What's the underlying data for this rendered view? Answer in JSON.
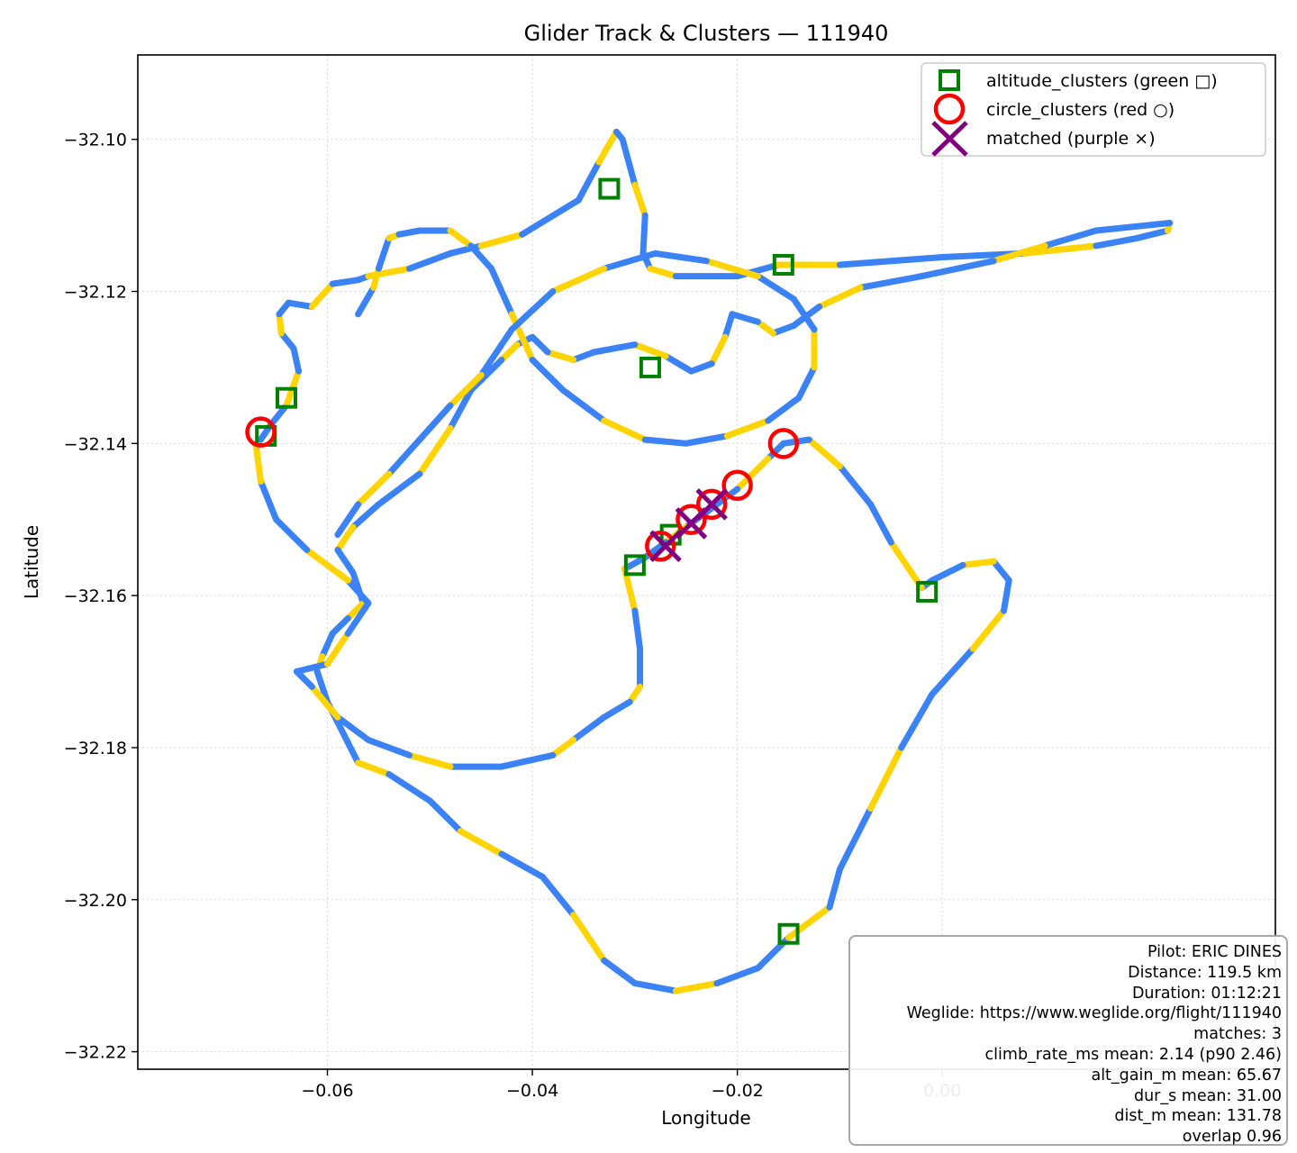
{
  "chart_data": {
    "type": "scatter",
    "title": "Glider Track & Clusters — 111940",
    "xlabel": "Longitude",
    "ylabel": "Latitude",
    "xlim": [
      -0.0785,
      0.0325
    ],
    "ylim": [
      -32.2223,
      -32.0889
    ],
    "xticks": [
      -0.06,
      -0.04,
      -0.02,
      0.0
    ],
    "xtick_labels": [
      "−0.06",
      "−0.04",
      "−0.02",
      "0.00"
    ],
    "yticks": [
      -32.1,
      -32.12,
      -32.14,
      -32.16,
      -32.18,
      -32.2,
      -32.22
    ],
    "ytick_labels": [
      "−32.10",
      "−32.12",
      "−32.14",
      "−32.16",
      "−32.18",
      "−32.20",
      "−32.22"
    ],
    "grid": true,
    "legend_position": "top-right",
    "track_colors": [
      "#3b82f6",
      "#ffd400"
    ],
    "track": [
      [
        -0.0665,
        -32.1395
      ],
      [
        -0.0655,
        -32.1375
      ],
      [
        -0.064,
        -32.135
      ],
      [
        -0.0628,
        -32.1305
      ],
      [
        -0.0633,
        -32.1275
      ],
      [
        -0.0645,
        -32.1255
      ],
      [
        -0.0647,
        -32.123
      ],
      [
        -0.0638,
        -32.1215
      ],
      [
        -0.0615,
        -32.122
      ],
      [
        -0.0595,
        -32.119
      ],
      [
        -0.057,
        -32.1185
      ],
      [
        -0.056,
        -32.118
      ],
      [
        -0.052,
        -32.117
      ],
      [
        -0.048,
        -32.115
      ],
      [
        -0.045,
        -32.114
      ],
      [
        -0.041,
        -32.1125
      ],
      [
        -0.0355,
        -32.108
      ],
      [
        -0.0335,
        -32.103
      ],
      [
        -0.0318,
        -32.099
      ],
      [
        -0.0312,
        -32.1
      ],
      [
        -0.03,
        -32.106
      ],
      [
        -0.029,
        -32.11
      ],
      [
        -0.0292,
        -32.115
      ],
      [
        -0.0285,
        -32.117
      ],
      [
        -0.026,
        -32.118
      ],
      [
        -0.02,
        -32.118
      ],
      [
        -0.016,
        -32.1165
      ],
      [
        -0.01,
        -32.1165
      ],
      [
        0.0,
        -32.1155
      ],
      [
        0.008,
        -32.115
      ],
      [
        0.015,
        -32.114
      ],
      [
        0.019,
        -32.113
      ],
      [
        0.022,
        -32.112
      ],
      [
        0.0222,
        -32.111
      ],
      [
        0.015,
        -32.112
      ],
      [
        0.01,
        -32.114
      ],
      [
        0.005,
        -32.116
      ],
      [
        -0.002,
        -32.118
      ],
      [
        -0.008,
        -32.1195
      ],
      [
        -0.012,
        -32.122
      ],
      [
        -0.0145,
        -32.1245
      ],
      [
        -0.0165,
        -32.1255
      ],
      [
        -0.018,
        -32.124
      ],
      [
        -0.0205,
        -32.123
      ],
      [
        -0.0212,
        -32.126
      ],
      [
        -0.0225,
        -32.1295
      ],
      [
        -0.0245,
        -32.1305
      ],
      [
        -0.027,
        -32.1285
      ],
      [
        -0.03,
        -32.127
      ],
      [
        -0.034,
        -32.128
      ],
      [
        -0.036,
        -32.129
      ],
      [
        -0.0385,
        -32.128
      ],
      [
        -0.04,
        -32.126
      ],
      [
        -0.0415,
        -32.127
      ],
      [
        -0.043,
        -32.129
      ],
      [
        -0.046,
        -32.133
      ],
      [
        -0.048,
        -32.138
      ],
      [
        -0.051,
        -32.144
      ],
      [
        -0.055,
        -32.148
      ],
      [
        -0.0575,
        -32.151
      ],
      [
        -0.059,
        -32.154
      ],
      [
        -0.0575,
        -32.157
      ],
      [
        -0.0565,
        -32.161
      ],
      [
        -0.058,
        -32.163
      ],
      [
        -0.0595,
        -32.165
      ],
      [
        -0.0605,
        -32.168
      ],
      [
        -0.061,
        -32.17
      ],
      [
        -0.06,
        -32.174
      ],
      [
        -0.057,
        -32.182
      ],
      [
        -0.054,
        -32.1835
      ],
      [
        -0.05,
        -32.187
      ],
      [
        -0.047,
        -32.191
      ],
      [
        -0.043,
        -32.194
      ],
      [
        -0.039,
        -32.197
      ],
      [
        -0.036,
        -32.202
      ],
      [
        -0.033,
        -32.208
      ],
      [
        -0.03,
        -32.211
      ],
      [
        -0.026,
        -32.212
      ],
      [
        -0.022,
        -32.211
      ],
      [
        -0.018,
        -32.209
      ],
      [
        -0.015,
        -32.205
      ],
      [
        -0.011,
        -32.201
      ],
      [
        -0.01,
        -32.196
      ],
      [
        -0.007,
        -32.188
      ],
      [
        -0.004,
        -32.18
      ],
      [
        -0.001,
        -32.173
      ],
      [
        0.003,
        -32.167
      ],
      [
        0.006,
        -32.162
      ],
      [
        0.0065,
        -32.158
      ],
      [
        0.005,
        -32.1555
      ],
      [
        0.002,
        -32.156
      ],
      [
        -0.001,
        -32.158
      ],
      [
        -0.002,
        -32.159
      ],
      [
        -0.005,
        -32.153
      ],
      [
        -0.007,
        -32.148
      ],
      [
        -0.01,
        -32.143
      ],
      [
        -0.013,
        -32.1395
      ],
      [
        -0.0155,
        -32.14
      ],
      [
        -0.017,
        -32.142
      ],
      [
        -0.02,
        -32.146
      ],
      [
        -0.023,
        -32.149
      ],
      [
        -0.025,
        -32.151
      ],
      [
        -0.027,
        -32.153
      ],
      [
        -0.029,
        -32.155
      ],
      [
        -0.031,
        -32.1565
      ],
      [
        -0.03,
        -32.162
      ],
      [
        -0.0295,
        -32.167
      ],
      [
        -0.0295,
        -32.172
      ],
      [
        -0.0305,
        -32.174
      ],
      [
        -0.033,
        -32.176
      ],
      [
        -0.036,
        -32.179
      ],
      [
        -0.038,
        -32.181
      ],
      [
        -0.043,
        -32.1825
      ],
      [
        -0.048,
        -32.1825
      ],
      [
        -0.052,
        -32.181
      ],
      [
        -0.056,
        -32.179
      ],
      [
        -0.059,
        -32.176
      ],
      [
        -0.0615,
        -32.172
      ],
      [
        -0.063,
        -32.17
      ],
      [
        -0.06,
        -32.169
      ],
      [
        -0.058,
        -32.165
      ],
      [
        -0.056,
        -32.161
      ],
      [
        -0.058,
        -32.158
      ],
      [
        -0.062,
        -32.154
      ],
      [
        -0.065,
        -32.15
      ],
      [
        -0.0665,
        -32.145
      ],
      [
        -0.067,
        -32.14
      ]
    ],
    "track_extra": [
      [
        -0.057,
        -32.123
      ],
      [
        -0.0555,
        -32.1195
      ],
      [
        -0.055,
        -32.117
      ],
      [
        -0.0545,
        -32.115
      ],
      [
        -0.054,
        -32.113
      ],
      [
        -0.053,
        -32.1125
      ],
      [
        -0.051,
        -32.112
      ],
      [
        -0.048,
        -32.112
      ],
      [
        -0.046,
        -32.114
      ],
      [
        -0.044,
        -32.117
      ],
      [
        -0.042,
        -32.123
      ],
      [
        -0.04,
        -32.129
      ],
      [
        -0.037,
        -32.133
      ],
      [
        -0.033,
        -32.137
      ],
      [
        -0.029,
        -32.1395
      ],
      [
        -0.025,
        -32.14
      ],
      [
        -0.021,
        -32.139
      ],
      [
        -0.017,
        -32.137
      ],
      [
        -0.014,
        -32.134
      ],
      [
        -0.0125,
        -32.13
      ],
      [
        -0.0125,
        -32.125
      ],
      [
        -0.0145,
        -32.121
      ],
      [
        -0.018,
        -32.118
      ],
      [
        -0.023,
        -32.116
      ],
      [
        -0.028,
        -32.115
      ],
      [
        -0.033,
        -32.117
      ],
      [
        -0.038,
        -32.12
      ],
      [
        -0.042,
        -32.125
      ],
      [
        -0.045,
        -32.131
      ],
      [
        -0.048,
        -32.135
      ],
      [
        -0.051,
        -32.1395
      ],
      [
        -0.054,
        -32.144
      ],
      [
        -0.057,
        -32.148
      ],
      [
        -0.059,
        -32.152
      ]
    ],
    "altitude_clusters": [
      [
        -0.0325,
        -32.1065
      ],
      [
        -0.0155,
        -32.1165
      ],
      [
        -0.0285,
        -32.13
      ],
      [
        -0.064,
        -32.134
      ],
      [
        -0.066,
        -32.139
      ],
      [
        -0.0265,
        -32.152
      ],
      [
        -0.03,
        -32.156
      ],
      [
        -0.0015,
        -32.1595
      ],
      [
        -0.015,
        -32.2045
      ]
    ],
    "circle_clusters": [
      [
        -0.0155,
        -32.14
      ],
      [
        -0.02,
        -32.1455
      ],
      [
        -0.0225,
        -32.148
      ],
      [
        -0.0245,
        -32.15
      ],
      [
        -0.0275,
        -32.1535
      ],
      [
        -0.0665,
        -32.1385
      ]
    ],
    "matched": [
      [
        -0.0225,
        -32.148
      ],
      [
        -0.0245,
        -32.1505
      ],
      [
        -0.027,
        -32.1535
      ]
    ],
    "legend": [
      {
        "label": "altitude_clusters (green □)",
        "marker": "square",
        "color": "#008000"
      },
      {
        "label": "circle_clusters (red ○)",
        "marker": "circle",
        "color": "#ff0000"
      },
      {
        "label": "matched (purple ×)",
        "marker": "x",
        "color": "#800080"
      }
    ]
  },
  "info_box": {
    "lines": [
      "Pilot: ERIC DINES",
      "Distance: 119.5 km",
      "Duration: 01:12:21",
      "Weglide: https://www.weglide.org/flight/111940",
      "matches: 3",
      "climb_rate_ms mean: 2.14 (p90 2.46)",
      "alt_gain_m mean: 65.67",
      "dur_s mean: 31.00",
      "dist_m mean: 131.78",
      "overlap 0.96"
    ]
  }
}
